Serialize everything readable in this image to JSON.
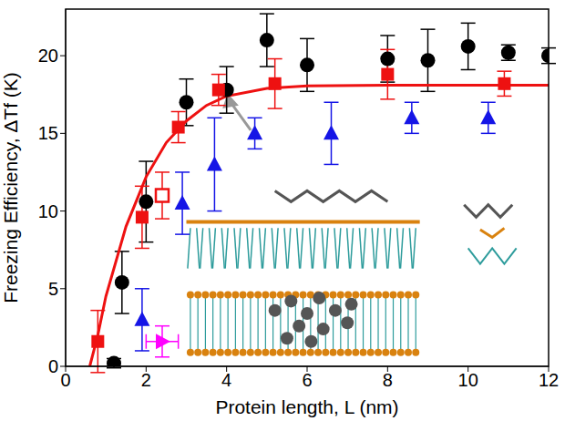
{
  "chart_data": {
    "type": "scatter",
    "x_label": "Protein length, L (nm)",
    "y_label": "Freezing Efficiency, ΔTf (K)",
    "xlim": [
      0,
      12
    ],
    "xticks": [
      0,
      2,
      4,
      6,
      8,
      10,
      12
    ],
    "ylim": [
      0,
      23
    ],
    "yticks": [
      0,
      5,
      10,
      15,
      20
    ],
    "grid": false,
    "series": [
      {
        "type": "line",
        "color": "#ee1111",
        "line_style": "solid",
        "x": [
          0.6,
          0.8,
          1.0,
          1.5,
          2.0,
          2.5,
          3.0,
          3.5,
          4.0,
          5.0,
          6.0,
          8.0,
          12.0
        ],
        "values": [
          0,
          2,
          4.5,
          9,
          12.2,
          14.4,
          15.8,
          16.8,
          17.4,
          17.9,
          18.05,
          18.1,
          18.1
        ]
      },
      {
        "type": "scatter",
        "marker": "circle",
        "color": "#000000",
        "x": [
          1.2,
          1.4,
          2.0,
          3.0,
          4.0,
          5.0,
          6.0,
          8.0,
          9.0,
          10.0,
          11.0,
          12.0
        ],
        "values": [
          0.2,
          5.4,
          10.6,
          17.0,
          17.8,
          21.0,
          19.4,
          19.8,
          19.7,
          20.6,
          20.2,
          20.0
        ],
        "y_err": [
          0.3,
          2.0,
          2.6,
          1.5,
          1.5,
          1.7,
          1.7,
          1.5,
          2.0,
          1.5,
          0.5,
          0.5
        ]
      },
      {
        "type": "scatter",
        "marker": "square",
        "color": "#ee1111",
        "x": [
          0.8,
          1.9,
          2.8,
          3.8,
          5.2,
          8.0,
          10.9
        ],
        "values": [
          1.6,
          9.6,
          15.4,
          17.8,
          18.2,
          18.8,
          18.2
        ],
        "y_err": [
          2.0,
          2.0,
          1.0,
          1.0,
          1.6,
          1.6,
          0.8
        ]
      },
      {
        "type": "scatter",
        "marker": "open_square",
        "color": "#ee1111",
        "x": [
          2.4
        ],
        "values": [
          11.0
        ],
        "y_err": [
          1.5
        ]
      },
      {
        "type": "scatter",
        "marker": "triangle",
        "color": "#1515e6",
        "x": [
          1.9,
          2.9,
          3.7,
          4.7,
          6.6,
          8.6,
          10.5
        ],
        "values": [
          3.0,
          10.5,
          13.0,
          15.0,
          15.0,
          16.0,
          16.0
        ],
        "y_err": [
          2.0,
          2.0,
          3.0,
          1.0,
          2.0,
          1.0,
          1.0
        ]
      },
      {
        "type": "scatter",
        "marker": "right_triangle",
        "color": "#ff00ff",
        "x": [
          2.4
        ],
        "values": [
          1.6
        ],
        "y_err": [
          1.0
        ],
        "x_err": [
          0.4
        ]
      }
    ]
  }
}
